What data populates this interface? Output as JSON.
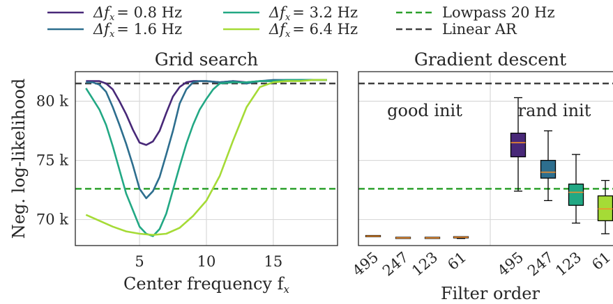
{
  "chart_data": [
    {
      "type": "line",
      "title": "Grid search",
      "xlabel": "Center frequency f",
      "xlabel_sub": "x",
      "ylabel": "Neg. log-likelihood",
      "xlim": [
        0.2,
        19.8
      ],
      "ylim": [
        67.8,
        82.5
      ],
      "xticks": [
        5,
        10,
        15
      ],
      "xtick_labels": [
        "5",
        "10",
        "15"
      ],
      "yticks": [
        70,
        75,
        80
      ],
      "ytick_labels": [
        "70 k",
        "75 k",
        "80 k"
      ],
      "grid": true,
      "series": [
        {
          "name": "Δf = 0.8 Hz",
          "name_main": "Δf",
          "name_sub": "x",
          "name_value": "= 0.8 Hz",
          "color": "#482878",
          "x": [
            1,
            1.5,
            2,
            2.5,
            3,
            3.5,
            4,
            4.5,
            5,
            5.5,
            6,
            6.5,
            7,
            7.5,
            8,
            8.5,
            9,
            9.5,
            10,
            11,
            12,
            13,
            14,
            15,
            16,
            17,
            18,
            19
          ],
          "y": [
            81.7,
            81.7,
            81.7,
            81.5,
            81.0,
            80.0,
            78.9,
            77.6,
            76.5,
            76.3,
            76.6,
            77.5,
            79.0,
            80.4,
            81.2,
            81.6,
            81.7,
            81.7,
            81.7,
            81.6,
            81.7,
            81.6,
            81.7,
            81.7,
            81.7,
            81.8,
            81.8,
            81.8
          ]
        },
        {
          "name": "Δf = 1.6 Hz",
          "name_main": "Δf",
          "name_sub": "x",
          "name_value": "= 1.6 Hz",
          "color": "#2d6e8e",
          "x": [
            1,
            1.5,
            2,
            2.5,
            3,
            3.5,
            4,
            4.5,
            5,
            5.5,
            6,
            6.5,
            7,
            7.5,
            8,
            8.5,
            9,
            9.5,
            10,
            11,
            12,
            13,
            14,
            15,
            16,
            17,
            18,
            19
          ],
          "y": [
            81.6,
            81.6,
            81.4,
            80.8,
            79.5,
            78.0,
            76.4,
            74.6,
            72.6,
            71.8,
            72.4,
            73.6,
            75.5,
            77.5,
            79.8,
            81.0,
            81.6,
            81.7,
            81.7,
            81.6,
            81.7,
            81.5,
            81.7,
            81.8,
            81.8,
            81.8,
            81.8,
            81.8
          ]
        },
        {
          "name": "Δf = 3.2 Hz",
          "name_main": "Δf",
          "name_sub": "x",
          "name_value": "= 3.2 Hz",
          "color": "#22a884",
          "x": [
            1,
            1.5,
            2,
            2.5,
            3,
            3.5,
            4,
            4.5,
            5,
            5.5,
            6,
            6.5,
            7,
            7.5,
            8,
            8.5,
            9,
            9.5,
            10,
            10.5,
            11,
            12,
            13,
            14,
            15,
            16,
            17,
            18,
            19
          ],
          "y": [
            81.1,
            80.2,
            79.3,
            78.0,
            76.2,
            74.2,
            72.2,
            70.8,
            69.4,
            68.8,
            68.6,
            69.2,
            70.5,
            72.5,
            74.5,
            76.4,
            78.0,
            79.3,
            80.2,
            81.0,
            81.5,
            81.6,
            81.6,
            81.7,
            81.7,
            81.8,
            81.8,
            81.8,
            81.8
          ]
        },
        {
          "name": "Δf = 6.4 Hz",
          "name_main": "Δf",
          "name_sub": "x",
          "name_value": "= 6.4 Hz",
          "color": "#a5db36",
          "x": [
            1,
            2,
            3,
            4,
            5,
            6,
            7,
            8,
            9,
            10,
            11,
            12,
            13,
            14,
            15,
            16,
            17,
            18,
            19
          ],
          "y": [
            70.4,
            69.9,
            69.4,
            69.0,
            68.8,
            68.7,
            68.8,
            69.3,
            70.3,
            71.6,
            73.7,
            76.7,
            79.5,
            81.2,
            81.6,
            81.7,
            81.7,
            81.8,
            81.8
          ]
        }
      ],
      "reference_lines": [
        {
          "name": "Lowpass 20 Hz",
          "y": 72.6,
          "color": "#2ca02c",
          "style": "dashed"
        },
        {
          "name": "Linear AR",
          "y": 81.5,
          "color": "#404040",
          "style": "dashed"
        }
      ]
    },
    {
      "type": "box",
      "title": "Gradient descent",
      "xlabel": "Filter order",
      "ylim": [
        67.8,
        82.5
      ],
      "grid": true,
      "groups": [
        {
          "label": "good init",
          "categories": [
            "495",
            "247",
            "123",
            "61"
          ]
        },
        {
          "label": "rand init",
          "categories": [
            "495",
            "247",
            "123",
            "61"
          ]
        }
      ],
      "boxes": [
        {
          "group": "good init",
          "category": "495",
          "min": 68.55,
          "q1": 68.55,
          "median": 68.6,
          "q3": 68.65,
          "max": 68.65,
          "color": "#f4a460"
        },
        {
          "group": "good init",
          "category": "247",
          "min": 68.4,
          "q1": 68.4,
          "median": 68.45,
          "q3": 68.5,
          "max": 68.5,
          "color": "#f4a460"
        },
        {
          "group": "good init",
          "category": "123",
          "min": 68.4,
          "q1": 68.4,
          "median": 68.45,
          "q3": 68.5,
          "max": 68.5,
          "color": "#f4a460"
        },
        {
          "group": "good init",
          "category": "61",
          "min": 68.4,
          "q1": 68.45,
          "median": 68.5,
          "q3": 68.55,
          "max": 68.55,
          "color": "#f4a460"
        },
        {
          "group": "rand init",
          "category": "495",
          "min": 72.4,
          "q1": 75.3,
          "median": 76.5,
          "q3": 77.3,
          "max": 80.3,
          "color": "#482878"
        },
        {
          "group": "rand init",
          "category": "247",
          "min": 71.6,
          "q1": 73.5,
          "median": 74.0,
          "q3": 75.0,
          "max": 77.5,
          "color": "#2d6e8e"
        },
        {
          "group": "rand init",
          "category": "123",
          "min": 69.7,
          "q1": 71.2,
          "median": 72.3,
          "q3": 73.0,
          "max": 75.5,
          "color": "#22a884"
        },
        {
          "group": "rand init",
          "category": "61",
          "min": 68.8,
          "q1": 69.9,
          "median": 70.9,
          "q3": 72.0,
          "max": 73.3,
          "color": "#a5db36"
        }
      ],
      "median_color": "#f28e2b",
      "reference_lines": [
        {
          "name": "Lowpass 20 Hz",
          "y": 72.6,
          "color": "#2ca02c",
          "style": "dashed"
        },
        {
          "name": "Linear AR",
          "y": 81.5,
          "color": "#404040",
          "style": "dashed"
        }
      ]
    }
  ],
  "legend": {
    "placement": "top",
    "entries": [
      {
        "label": "Δf = 0.8 Hz",
        "label_main": "Δf",
        "label_sub": "x",
        "label_value": "= 0.8 Hz",
        "color": "#482878",
        "style": "solid"
      },
      {
        "label": "Δf = 1.6 Hz",
        "label_main": "Δf",
        "label_sub": "x",
        "label_value": "= 1.6 Hz",
        "color": "#2d6e8e",
        "style": "solid"
      },
      {
        "label": "Δf = 3.2 Hz",
        "label_main": "Δf",
        "label_sub": "x",
        "label_value": "= 3.2 Hz",
        "color": "#22a884",
        "style": "solid"
      },
      {
        "label": "Δf = 6.4 Hz",
        "label_main": "Δf",
        "label_sub": "x",
        "label_value": "= 6.4 Hz",
        "color": "#a5db36",
        "style": "solid"
      },
      {
        "label": "Lowpass 20 Hz",
        "color": "#2ca02c",
        "style": "dashed"
      },
      {
        "label": "Linear AR",
        "color": "#404040",
        "style": "dashed"
      }
    ]
  }
}
